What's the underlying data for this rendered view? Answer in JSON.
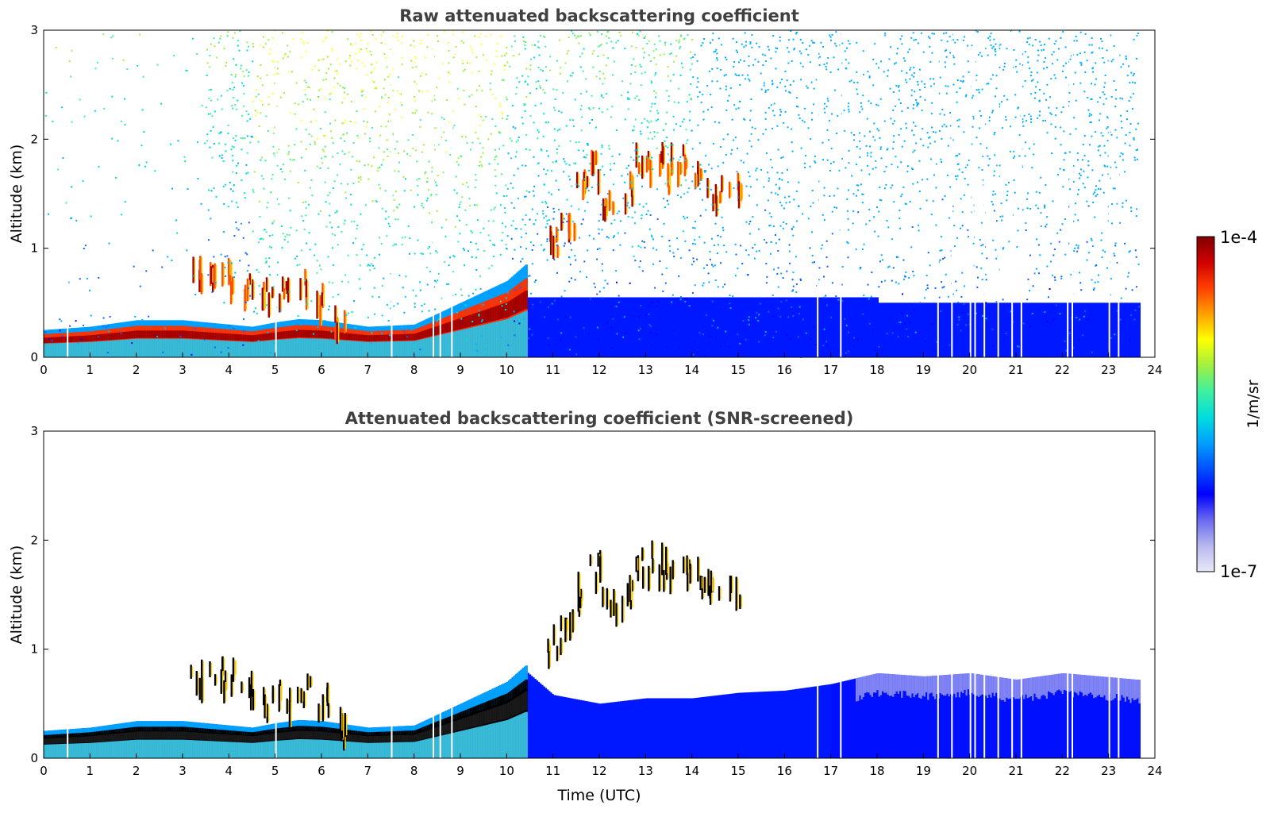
{
  "colors": {
    "background": "#ffffff",
    "title": "#404040",
    "colormap": [
      "#e8e8f8",
      "#b8b8ef",
      "#6a6af0",
      "#0000ff",
      "#0050ff",
      "#00a0ff",
      "#00dddd",
      "#40f0a0",
      "#a0f040",
      "#ffff00",
      "#ffa000",
      "#ff4000",
      "#d00000",
      "#800000"
    ]
  },
  "chart_data": [
    {
      "type": "heatmap",
      "title": "Raw attenuated backscattering coefficient",
      "xlabel": "",
      "ylabel": "Altitude (km)",
      "xlim": [
        0,
        24
      ],
      "ylim": [
        0,
        3
      ],
      "x_ticks": [
        "0",
        "1",
        "2",
        "3",
        "4",
        "5",
        "6",
        "7",
        "8",
        "9",
        "10",
        "11",
        "12",
        "13",
        "14",
        "15",
        "16",
        "17",
        "18",
        "19",
        "20",
        "21",
        "22",
        "23",
        "24"
      ],
      "y_ticks": [
        "0",
        "1",
        "2",
        "3"
      ],
      "data_end_time": 23.65,
      "aerosol_layer_top_km": [
        [
          0,
          0.25
        ],
        [
          1,
          0.28
        ],
        [
          2,
          0.34
        ],
        [
          3,
          0.34
        ],
        [
          4,
          0.3
        ],
        [
          4.5,
          0.28
        ],
        [
          5,
          0.32
        ],
        [
          5.5,
          0.35
        ],
        [
          6,
          0.34
        ],
        [
          7,
          0.28
        ],
        [
          8,
          0.3
        ],
        [
          9,
          0.5
        ],
        [
          10,
          0.7
        ],
        [
          10.4,
          0.85
        ]
      ],
      "cloud_points": [
        [
          3.3,
          0.85
        ],
        [
          3.7,
          0.88
        ],
        [
          4.0,
          0.8
        ],
        [
          4.4,
          0.72
        ],
        [
          4.8,
          0.62
        ],
        [
          5.2,
          0.65
        ],
        [
          5.6,
          0.72
        ],
        [
          6.0,
          0.6
        ],
        [
          6.4,
          0.38
        ],
        [
          11.0,
          1.15
        ],
        [
          11.3,
          1.35
        ],
        [
          11.6,
          1.6
        ],
        [
          11.9,
          1.8
        ],
        [
          12.2,
          1.5
        ],
        [
          12.6,
          1.6
        ],
        [
          12.9,
          1.85
        ],
        [
          13.2,
          1.9
        ],
        [
          13.5,
          1.85
        ],
        [
          13.8,
          1.85
        ],
        [
          14.2,
          1.75
        ],
        [
          14.5,
          1.6
        ],
        [
          14.9,
          1.6
        ]
      ],
      "missing_profile_times": [
        0.5,
        5.0,
        7.5,
        8.4,
        8.55,
        8.8,
        16.7,
        17.2,
        19.3,
        19.6,
        20.0,
        20.1,
        20.3,
        20.6,
        20.9,
        21.1,
        22.1,
        22.2,
        23.0,
        23.2
      ]
    },
    {
      "type": "heatmap",
      "title": "Attenuated backscattering coefficient (SNR-screened)",
      "xlabel": "Time (UTC)",
      "ylabel": "Altitude (km)",
      "xlim": [
        0,
        24
      ],
      "ylim": [
        0,
        3
      ],
      "x_ticks": [
        "0",
        "1",
        "2",
        "3",
        "4",
        "5",
        "6",
        "7",
        "8",
        "9",
        "10",
        "11",
        "12",
        "13",
        "14",
        "15",
        "16",
        "17",
        "18",
        "19",
        "20",
        "21",
        "22",
        "23",
        "24"
      ],
      "y_ticks": [
        "0",
        "1",
        "2",
        "3"
      ],
      "data_end_time": 23.65,
      "screened_noise_top_km": [
        [
          10.4,
          0.8
        ],
        [
          11,
          0.58
        ],
        [
          12,
          0.5
        ],
        [
          13,
          0.55
        ],
        [
          14,
          0.55
        ],
        [
          15,
          0.6
        ],
        [
          16,
          0.62
        ],
        [
          17,
          0.68
        ],
        [
          18,
          0.78
        ],
        [
          19,
          0.75
        ],
        [
          20,
          0.78
        ],
        [
          21,
          0.72
        ],
        [
          22,
          0.78
        ],
        [
          23.6,
          0.72
        ]
      ]
    }
  ],
  "colorbar": {
    "max_label": "1e-4",
    "min_label": "1e-7",
    "unit_label": "1/m/sr"
  }
}
